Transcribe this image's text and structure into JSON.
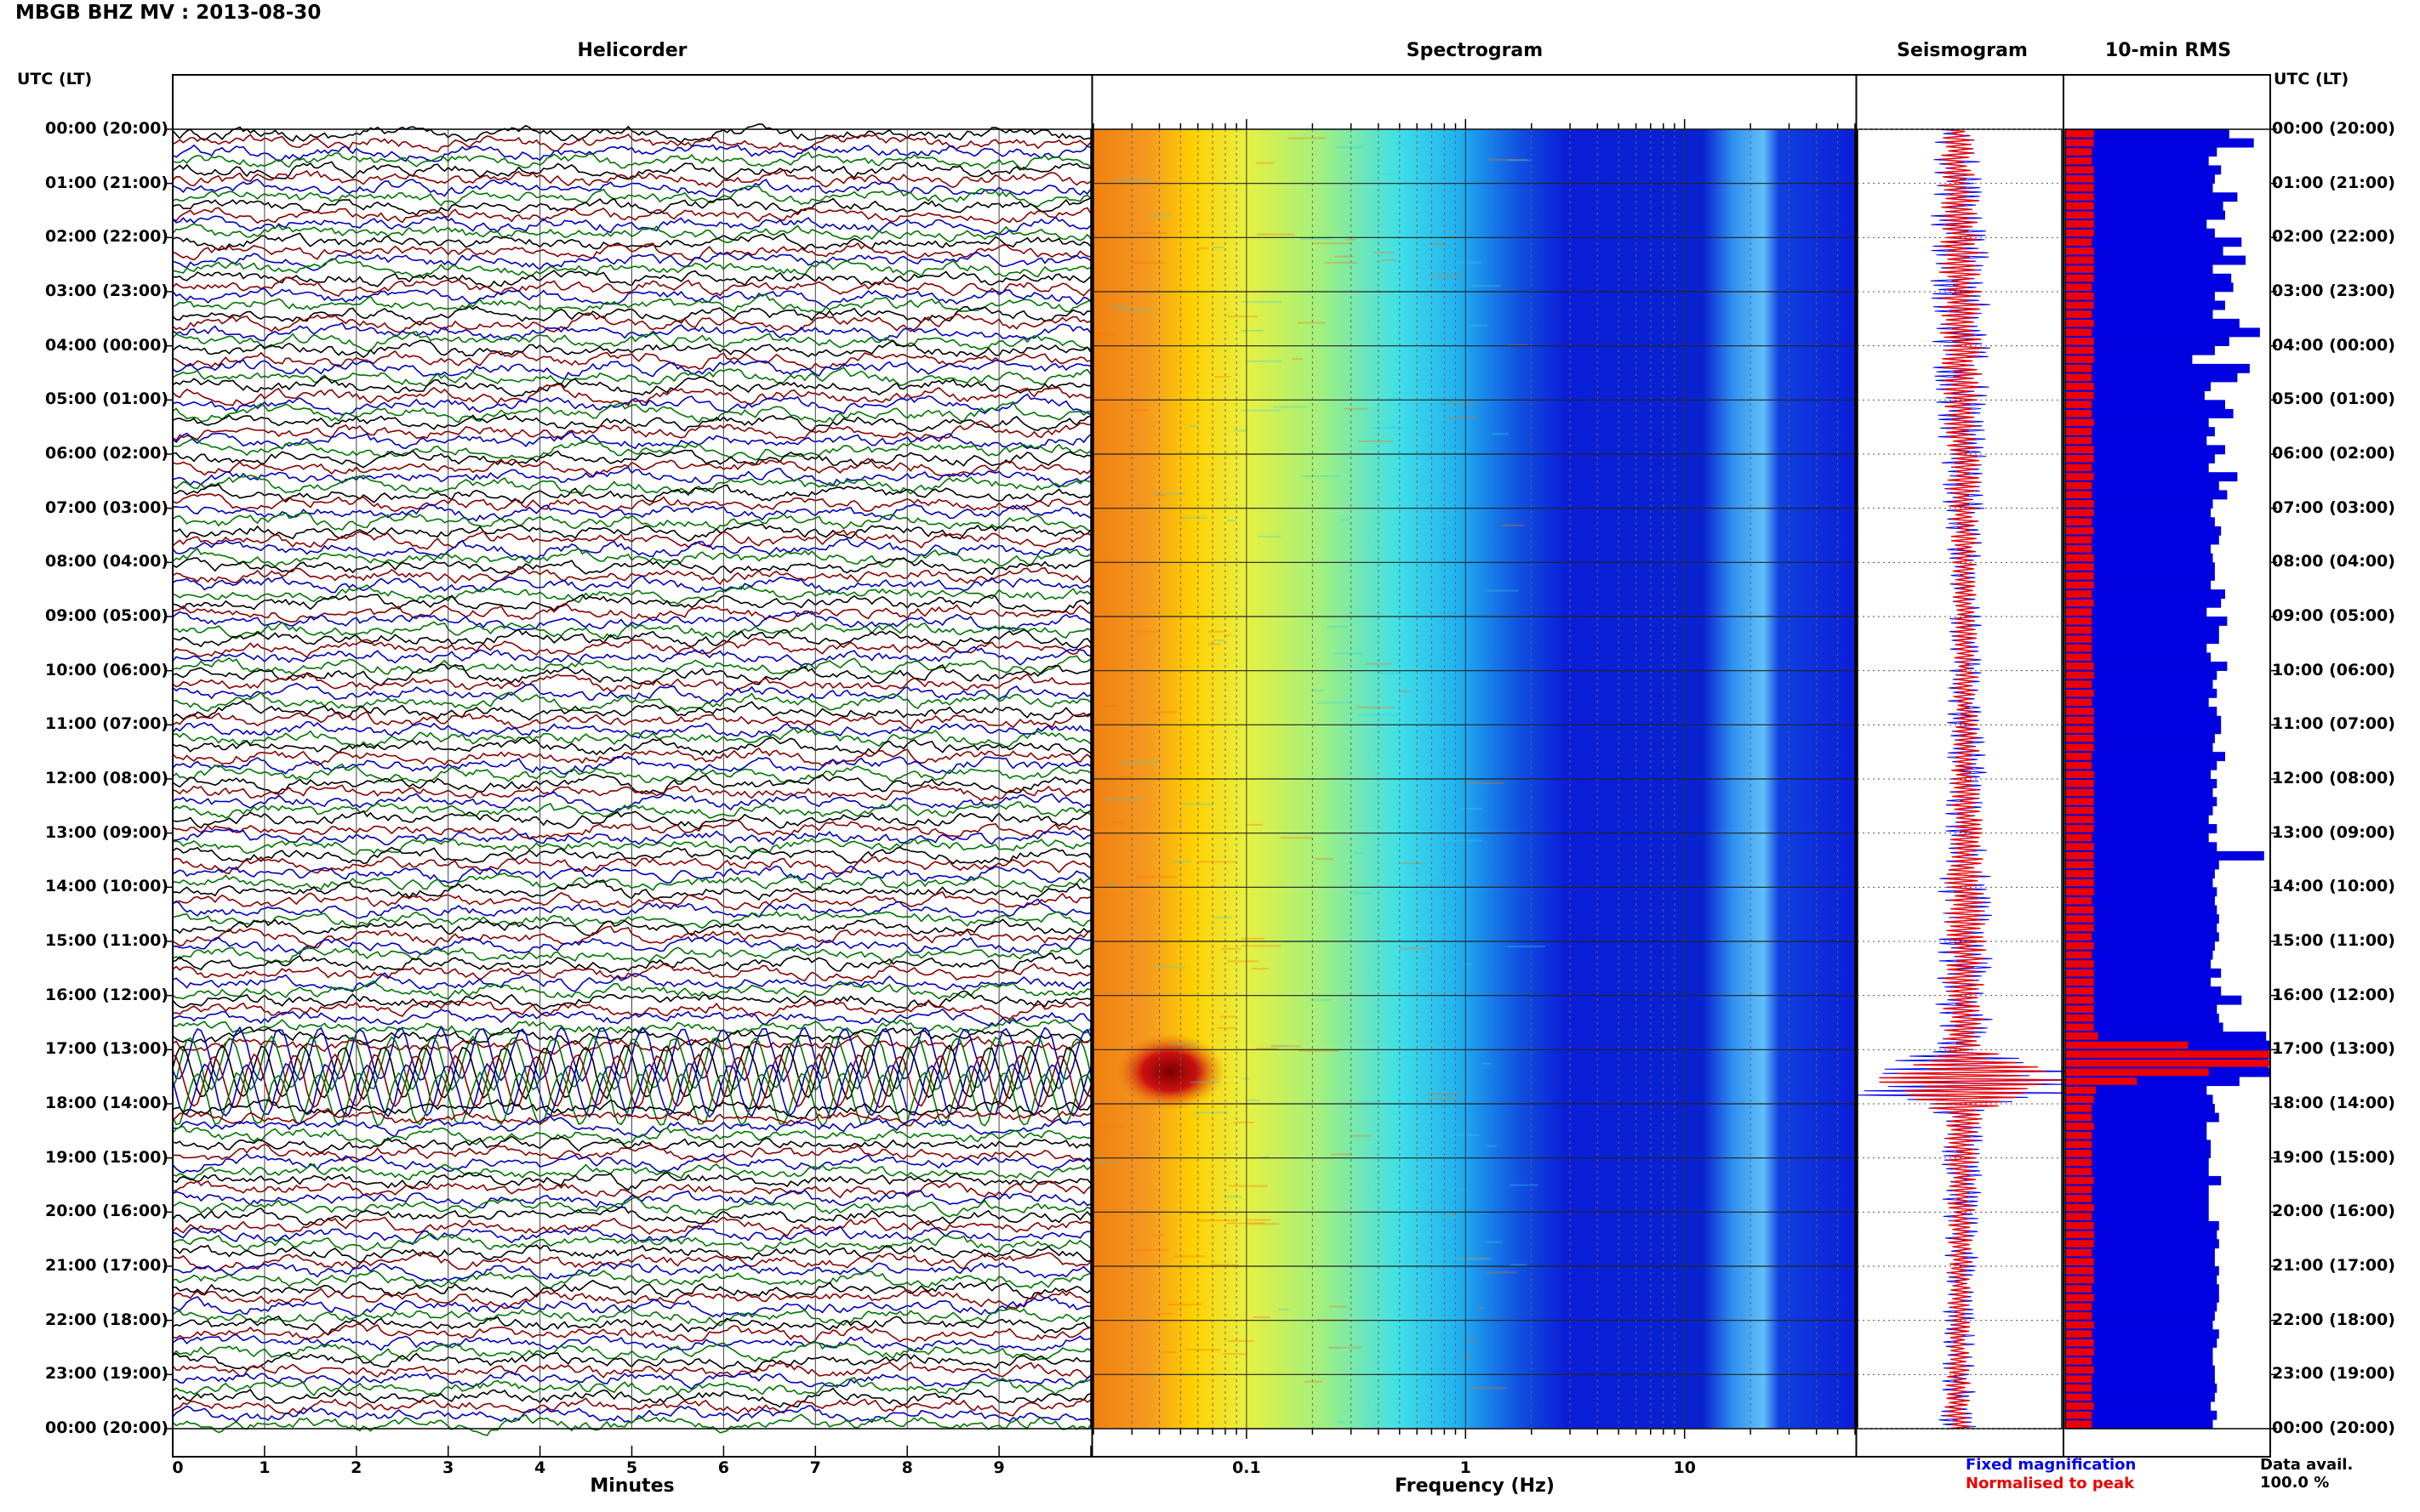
{
  "title": "MBGB BHZ MV : 2013-08-30",
  "time_axis_label": "UTC (LT)",
  "colors": {
    "trace_cycle": [
      "#000000",
      "#8b0000",
      "#0000c0",
      "#007700"
    ],
    "spec_blue": "#0a1ed8",
    "fixed": "#0000ee",
    "peak": "#ee0000"
  },
  "legend": {
    "fixed": "Fixed magnification",
    "peak": "Normalised to peak"
  },
  "data_availability": {
    "label": "Data avail.",
    "value": "100.0 %"
  },
  "chart_data": [
    {
      "type": "line",
      "title": "Helicorder",
      "xlabel": "Minutes",
      "x_ticks": [
        "0",
        "1",
        "2",
        "3",
        "4",
        "5",
        "6",
        "7",
        "8",
        "9"
      ],
      "xlim": [
        0,
        10
      ],
      "y_ticks": [
        "00:00 (20:00)",
        "01:00 (21:00)",
        "02:00 (22:00)",
        "03:00 (23:00)",
        "04:00 (00:00)",
        "05:00 (01:00)",
        "06:00 (02:00)",
        "07:00 (03:00)",
        "08:00 (04:00)",
        "09:00 (05:00)",
        "10:00 (06:00)",
        "11:00 (07:00)",
        "12:00 (08:00)",
        "13:00 (09:00)",
        "14:00 (10:00)",
        "15:00 (11:00)",
        "16:00 (12:00)",
        "17:00 (13:00)",
        "18:00 (14:00)",
        "19:00 (15:00)",
        "20:00 (16:00)",
        "21:00 (17:00)",
        "22:00 (18:00)",
        "23:00 (19:00)",
        "00:00 (20:00)"
      ],
      "traces_per_hour": 6,
      "event": {
        "start": "17:00",
        "end": "18:00",
        "note": "large-amplitude oscillations"
      }
    },
    {
      "type": "heatmap",
      "title": "Spectrogram",
      "xlabel": "Frequency (Hz)",
      "x_scale": "log",
      "x_ticks": [
        "0.1",
        "1",
        "10"
      ],
      "xlim": [
        0.02,
        60
      ],
      "y_range": [
        "00:00",
        "24:00"
      ],
      "colormap": "jet",
      "features": [
        {
          "freq_hz": 0.05,
          "time": "17:00-18:00",
          "level": "peak"
        },
        {
          "freq_hz": 20,
          "time": "00:00-24:00",
          "level": "persistent band"
        }
      ]
    },
    {
      "type": "line",
      "title": "Seismogram",
      "series": [
        {
          "name": "Fixed magnification",
          "color": "#0000ee"
        },
        {
          "name": "Normalised to peak",
          "color": "#ee0000"
        }
      ],
      "peak_time": "17:30"
    },
    {
      "type": "bar",
      "title": "10-min RMS",
      "orientation": "horizontal",
      "bins_per_hour": 6,
      "blue_bins": [
        0.8,
        0.92,
        0.74,
        0.7,
        0.76,
        0.73,
        0.72,
        0.84,
        0.77,
        0.78,
        0.69,
        0.73,
        0.86,
        0.77,
        0.88,
        0.72,
        0.81,
        0.82,
        0.73,
        0.78,
        0.72,
        0.85,
        0.95,
        0.8,
        0.73,
        0.62,
        0.9,
        0.84,
        0.71,
        0.68,
        0.78,
        0.82,
        0.7,
        0.73,
        0.69,
        0.78,
        0.73,
        0.7,
        0.84,
        0.75,
        0.79,
        0.72,
        0.71,
        0.73,
        0.76,
        0.75,
        0.71,
        0.72,
        0.73,
        0.73,
        0.71,
        0.78,
        0.76,
        0.69,
        0.79,
        0.75,
        0.75,
        0.69,
        0.71,
        0.79,
        0.74,
        0.72,
        0.74,
        0.7,
        0.74,
        0.76,
        0.76,
        0.73,
        0.72,
        0.78,
        0.74,
        0.71,
        0.74,
        0.72,
        0.74,
        0.72,
        0.7,
        0.74,
        0.7,
        0.74,
        0.97,
        0.75,
        0.73,
        0.72,
        0.74,
        0.73,
        0.74,
        0.75,
        0.74,
        0.75,
        0.73,
        0.72,
        0.71,
        0.76,
        0.71,
        0.76,
        0.86,
        0.74,
        0.75,
        0.77,
        0.98,
        1.0,
        1.0,
        0.99,
        1.0,
        0.85,
        0.69,
        0.72,
        0.73,
        0.75,
        0.69,
        0.69,
        0.71,
        0.71,
        0.7,
        0.7,
        0.76,
        0.7,
        0.7,
        0.7,
        0.7,
        0.75,
        0.74,
        0.75,
        0.73,
        0.73,
        0.75,
        0.74,
        0.75,
        0.75,
        0.74,
        0.73,
        0.72,
        0.75,
        0.74,
        0.72,
        0.72,
        0.73,
        0.73,
        0.74,
        0.73,
        0.71,
        0.74,
        0.72
      ],
      "red_bins": [
        0.14,
        0.14,
        0.13,
        0.13,
        0.14,
        0.14,
        0.14,
        0.14,
        0.14,
        0.14,
        0.14,
        0.14,
        0.13,
        0.14,
        0.14,
        0.14,
        0.14,
        0.13,
        0.14,
        0.14,
        0.13,
        0.14,
        0.13,
        0.14,
        0.14,
        0.14,
        0.13,
        0.13,
        0.14,
        0.14,
        0.13,
        0.13,
        0.14,
        0.13,
        0.13,
        0.14,
        0.14,
        0.13,
        0.14,
        0.13,
        0.13,
        0.14,
        0.14,
        0.13,
        0.14,
        0.13,
        0.13,
        0.14,
        0.14,
        0.14,
        0.14,
        0.13,
        0.14,
        0.13,
        0.13,
        0.13,
        0.13,
        0.13,
        0.13,
        0.14,
        0.14,
        0.13,
        0.14,
        0.13,
        0.14,
        0.14,
        0.14,
        0.14,
        0.14,
        0.13,
        0.13,
        0.14,
        0.14,
        0.14,
        0.14,
        0.14,
        0.14,
        0.14,
        0.13,
        0.14,
        0.14,
        0.14,
        0.14,
        0.14,
        0.14,
        0.13,
        0.14,
        0.14,
        0.14,
        0.13,
        0.14,
        0.13,
        0.14,
        0.14,
        0.14,
        0.14,
        0.14,
        0.14,
        0.14,
        0.14,
        0.16,
        0.6,
        1.0,
        1.0,
        0.7,
        0.35,
        0.15,
        0.14,
        0.13,
        0.13,
        0.14,
        0.13,
        0.13,
        0.13,
        0.13,
        0.13,
        0.14,
        0.13,
        0.13,
        0.14,
        0.13,
        0.14,
        0.14,
        0.14,
        0.13,
        0.14,
        0.14,
        0.14,
        0.13,
        0.14,
        0.13,
        0.13,
        0.14,
        0.13,
        0.14,
        0.14,
        0.13,
        0.14,
        0.13,
        0.13,
        0.13,
        0.14,
        0.13,
        0.13
      ]
    }
  ]
}
